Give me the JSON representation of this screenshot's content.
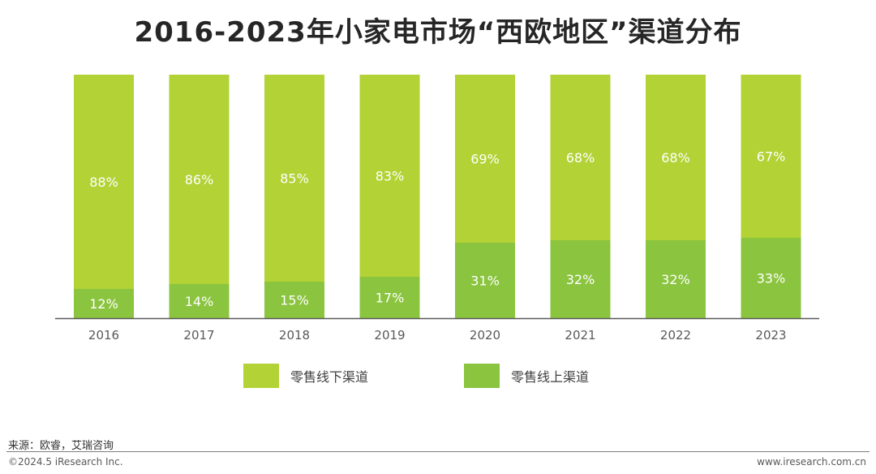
{
  "title": "2016-2023年小家电市场“西欧地区”渠道分布",
  "chart_data": {
    "type": "bar",
    "stacked": true,
    "percent_stacked": true,
    "categories": [
      "2016",
      "2017",
      "2018",
      "2019",
      "2020",
      "2021",
      "2022",
      "2023"
    ],
    "series": [
      {
        "name": "零售线下渠道",
        "color": "#b2d235",
        "values": [
          88,
          86,
          85,
          83,
          69,
          68,
          68,
          67
        ],
        "labels": [
          "88%",
          "86%",
          "85%",
          "83%",
          "69%",
          "68%",
          "68%",
          "67%"
        ]
      },
      {
        "name": "零售线上渠道",
        "color": "#8bc43f",
        "values": [
          12,
          14,
          15,
          17,
          31,
          32,
          32,
          33
        ],
        "labels": [
          "12%",
          "14%",
          "15%",
          "17%",
          "31%",
          "32%",
          "32%",
          "33%"
        ]
      }
    ],
    "ylim": [
      0,
      100
    ],
    "grid": false,
    "legend_position": "bottom"
  },
  "footer": {
    "source": "来源：欧睿，艾瑞咨询",
    "copyright": "©2024.5 iResearch Inc.",
    "website": "www.iresearch.com.cn"
  }
}
